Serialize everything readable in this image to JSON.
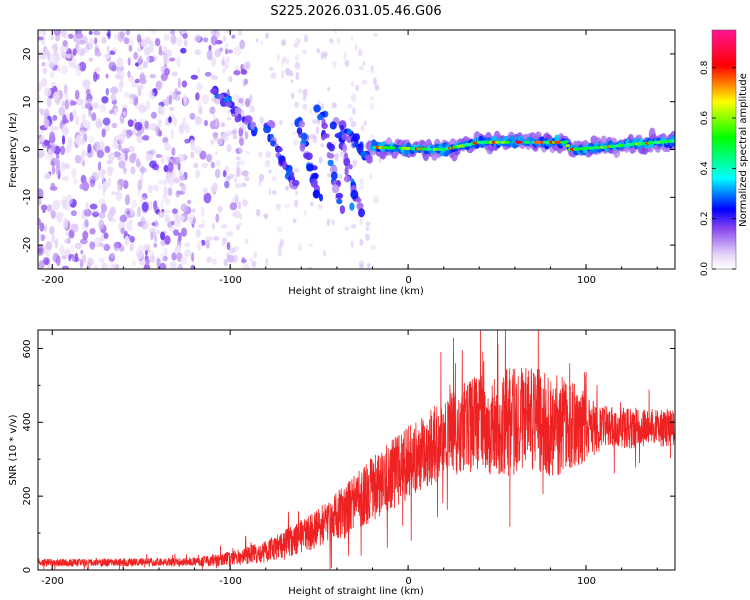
{
  "figure": {
    "title": "S225.2026.031.05.46.G06"
  },
  "chart_data": [
    {
      "type": "heatmap",
      "panel": "top",
      "xlabel": "Height of straight line (km)",
      "ylabel": "Frequency (Hz)",
      "xlim": [
        -208,
        150
      ],
      "ylim": [
        -25,
        25
      ],
      "x_ticks": [
        -200,
        -100,
        0,
        100
      ],
      "y_ticks": [
        -20,
        -10,
        0,
        10,
        20
      ],
      "x_tick_labels": [
        "-200",
        "-100",
        "0",
        "100"
      ],
      "y_tick_labels": [
        "-20",
        "-10",
        "0",
        "10",
        "20"
      ],
      "colorbar": {
        "label": "Normalized spectral amplitude",
        "range": [
          0,
          0.95
        ],
        "ticks": [
          0.0,
          0.2,
          0.4,
          0.6,
          0.8
        ],
        "tick_labels": [
          "0.0",
          "0.2",
          "0.4",
          "0.6",
          "0.8"
        ],
        "colormap": [
          "#ffffff",
          "#e6d5f7",
          "#8844ee",
          "#0000ff",
          "#00ffff",
          "#00ff00",
          "#ffff00",
          "#ff0000",
          "#ff1493"
        ]
      },
      "features": {
        "noise_region_km": [
          -208,
          -100
        ],
        "descending_streaks": [
          {
            "x": [
              -108,
              -85
            ],
            "f": [
              12,
              4
            ]
          },
          {
            "x": [
              -80,
              -63
            ],
            "f": [
              5,
              -8
            ]
          },
          {
            "x": [
              -63,
              -50
            ],
            "f": [
              7,
              -10
            ]
          },
          {
            "x": [
              -50,
              -38
            ],
            "f": [
              9,
              -12
            ]
          },
          {
            "x": [
              -40,
              -28
            ],
            "f": [
              6,
              -13
            ]
          },
          {
            "x": [
              -35,
              -22
            ],
            "f": [
              4,
              -2
            ]
          }
        ],
        "ridge": {
          "x": [
            -22,
            0,
            20,
            40,
            60,
            80,
            88,
            92,
            110,
            130,
            150
          ],
          "f": [
            0.5,
            0.2,
            0.0,
            1.5,
            1.5,
            1.5,
            1.5,
            0.0,
            0.5,
            1.2,
            1.8
          ]
        }
      }
    },
    {
      "type": "line",
      "panel": "bottom",
      "xlabel": "Height of straight line (km)",
      "ylabel": "SNR (10 * v/v)",
      "xlim": [
        -208,
        150
      ],
      "ylim": [
        0,
        650
      ],
      "x_ticks": [
        -200,
        -100,
        0,
        100
      ],
      "y_ticks": [
        0,
        200,
        400,
        600
      ],
      "x_tick_labels": [
        "-200",
        "-100",
        "0",
        "100"
      ],
      "y_tick_labels": [
        "0",
        "200",
        "400",
        "600"
      ],
      "color": "#ee2222",
      "envelope": {
        "x": [
          -208,
          -120,
          -100,
          -80,
          -60,
          -40,
          -20,
          0,
          10,
          20,
          35,
          60,
          80,
          95,
          110,
          150
        ],
        "mean": [
          20,
          22,
          30,
          50,
          90,
          140,
          220,
          290,
          320,
          360,
          390,
          400,
          395,
          390,
          385,
          385
        ],
        "spread": [
          10,
          12,
          20,
          30,
          45,
          70,
          90,
          100,
          100,
          110,
          130,
          150,
          150,
          110,
          60,
          50
        ]
      }
    }
  ]
}
